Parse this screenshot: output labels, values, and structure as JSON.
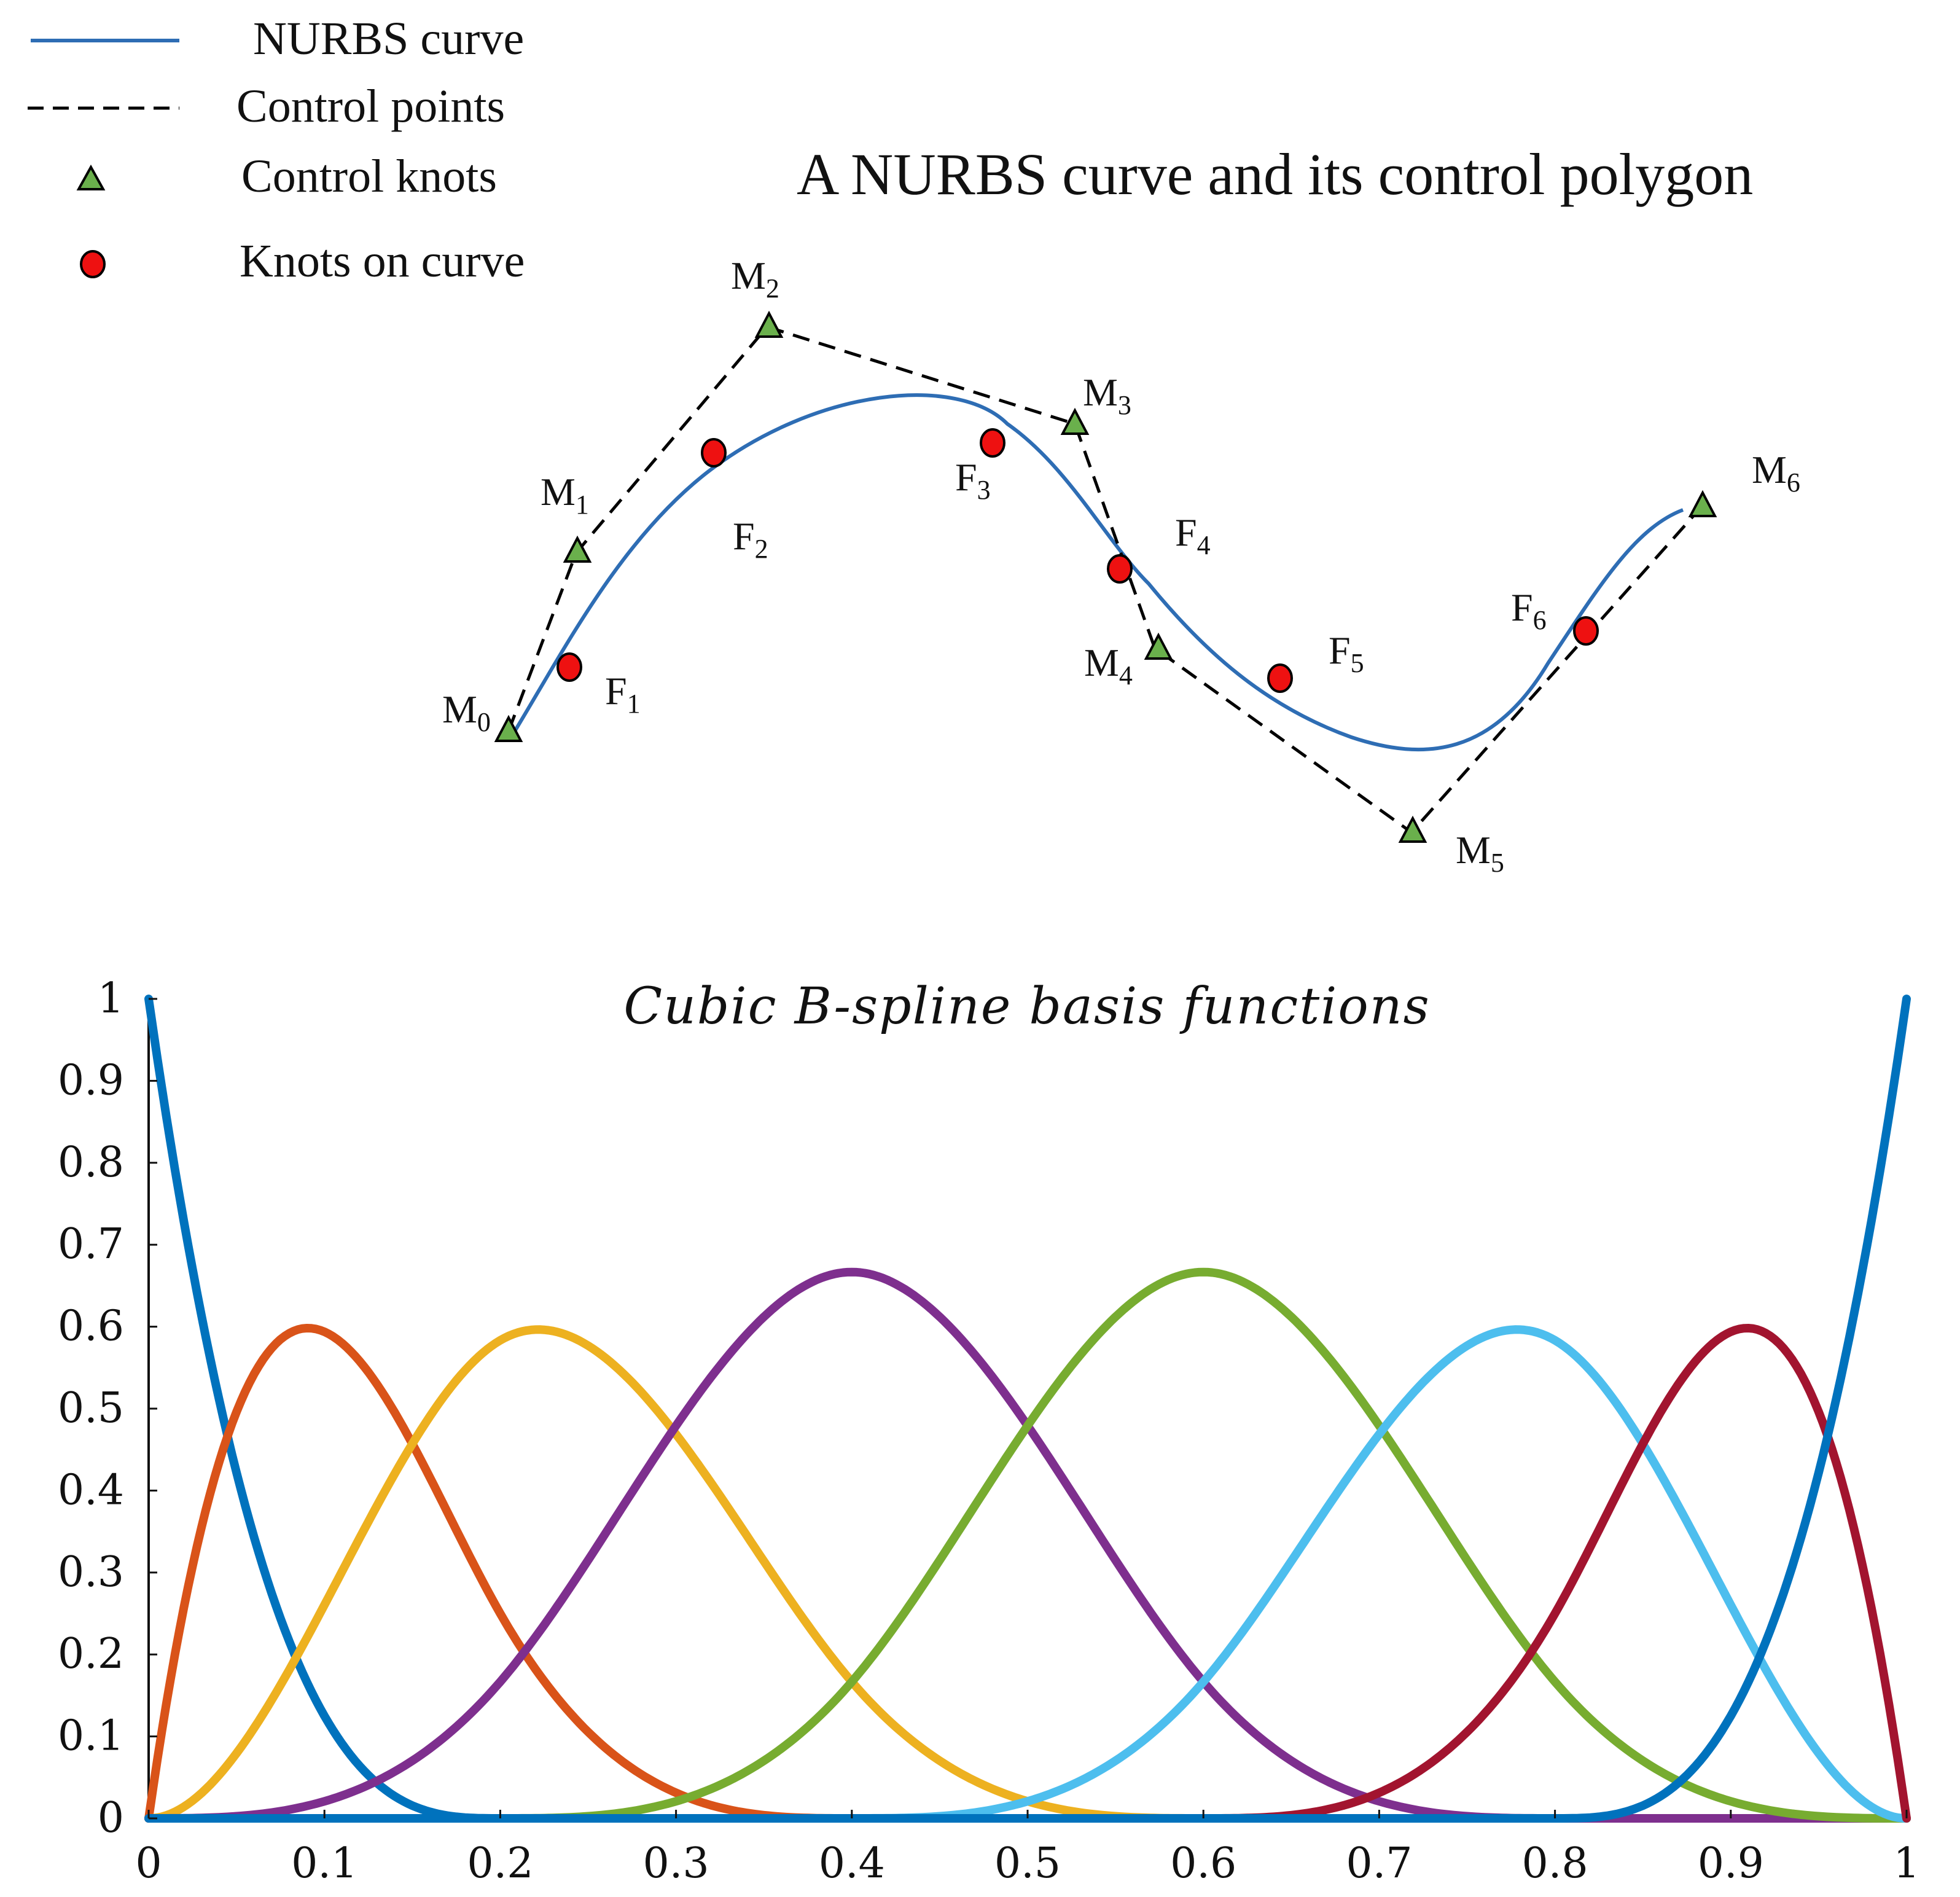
{
  "legend": {
    "items": [
      {
        "label": "NURBS curve",
        "symbol": "line",
        "color": "#2e6db4"
      },
      {
        "label": "Control points",
        "symbol": "dashed-line",
        "color": "#000000"
      },
      {
        "label": "Control knots",
        "symbol": "triangle",
        "color": "#6ab04c"
      },
      {
        "label": "Knots on curve",
        "symbol": "circle",
        "color": "#ee1111"
      }
    ]
  },
  "nurbs_panel": {
    "title": "A NURBS curve and its control polygon",
    "control_points": [
      {
        "name": "M",
        "sub": "0"
      },
      {
        "name": "M",
        "sub": "1"
      },
      {
        "name": "M",
        "sub": "2"
      },
      {
        "name": "M",
        "sub": "3"
      },
      {
        "name": "M",
        "sub": "4"
      },
      {
        "name": "M",
        "sub": "5"
      },
      {
        "name": "M",
        "sub": "6"
      }
    ],
    "curve_knots": [
      {
        "name": "F",
        "sub": "1"
      },
      {
        "name": "F",
        "sub": "2"
      },
      {
        "name": "F",
        "sub": "3"
      },
      {
        "name": "F",
        "sub": "4"
      },
      {
        "name": "F",
        "sub": "5"
      },
      {
        "name": "F",
        "sub": "6"
      }
    ],
    "colors": {
      "curve": "#2e6db4",
      "polygon": "#000000",
      "knot_triangle": "#6ab04c",
      "knot_circle": "#ee1111"
    }
  },
  "chart_data": {
    "type": "line",
    "title": "Cubic B-spline basis functions",
    "xlabel": "",
    "ylabel": "",
    "xlim": [
      0,
      1
    ],
    "ylim": [
      0,
      1
    ],
    "x_ticks": [
      "0",
      "0.1",
      "0.2",
      "0.3",
      "0.4",
      "0.5",
      "0.6",
      "0.7",
      "0.8",
      "0.9",
      "1"
    ],
    "y_ticks": [
      "0",
      "0.1",
      "0.2",
      "0.3",
      "0.4",
      "0.5",
      "0.6",
      "0.7",
      "0.8",
      "0.9",
      "1"
    ],
    "grid": false,
    "legend": "none",
    "degree": 3,
    "knot_vector": [
      0,
      0,
      0,
      0,
      0.2,
      0.4,
      0.6,
      0.8,
      1,
      1,
      1,
      1
    ],
    "series": [
      {
        "color": "#0072bd",
        "peak_x": 0.0,
        "peak_y": 1.0
      },
      {
        "color": "#d95319",
        "peak_x": 0.09,
        "peak_y": 0.6
      },
      {
        "color": "#edb120",
        "peak_x": 0.22,
        "peak_y": 0.6
      },
      {
        "color": "#7e2f8e",
        "peak_x": 0.4,
        "peak_y": 0.667
      },
      {
        "color": "#77ac30",
        "peak_x": 0.6,
        "peak_y": 0.667
      },
      {
        "color": "#4dbeee",
        "peak_x": 0.78,
        "peak_y": 0.6
      },
      {
        "color": "#a2142f",
        "peak_x": 0.91,
        "peak_y": 0.6
      },
      {
        "color": "#0072bd",
        "peak_x": 1.0,
        "peak_y": 1.0
      }
    ]
  }
}
